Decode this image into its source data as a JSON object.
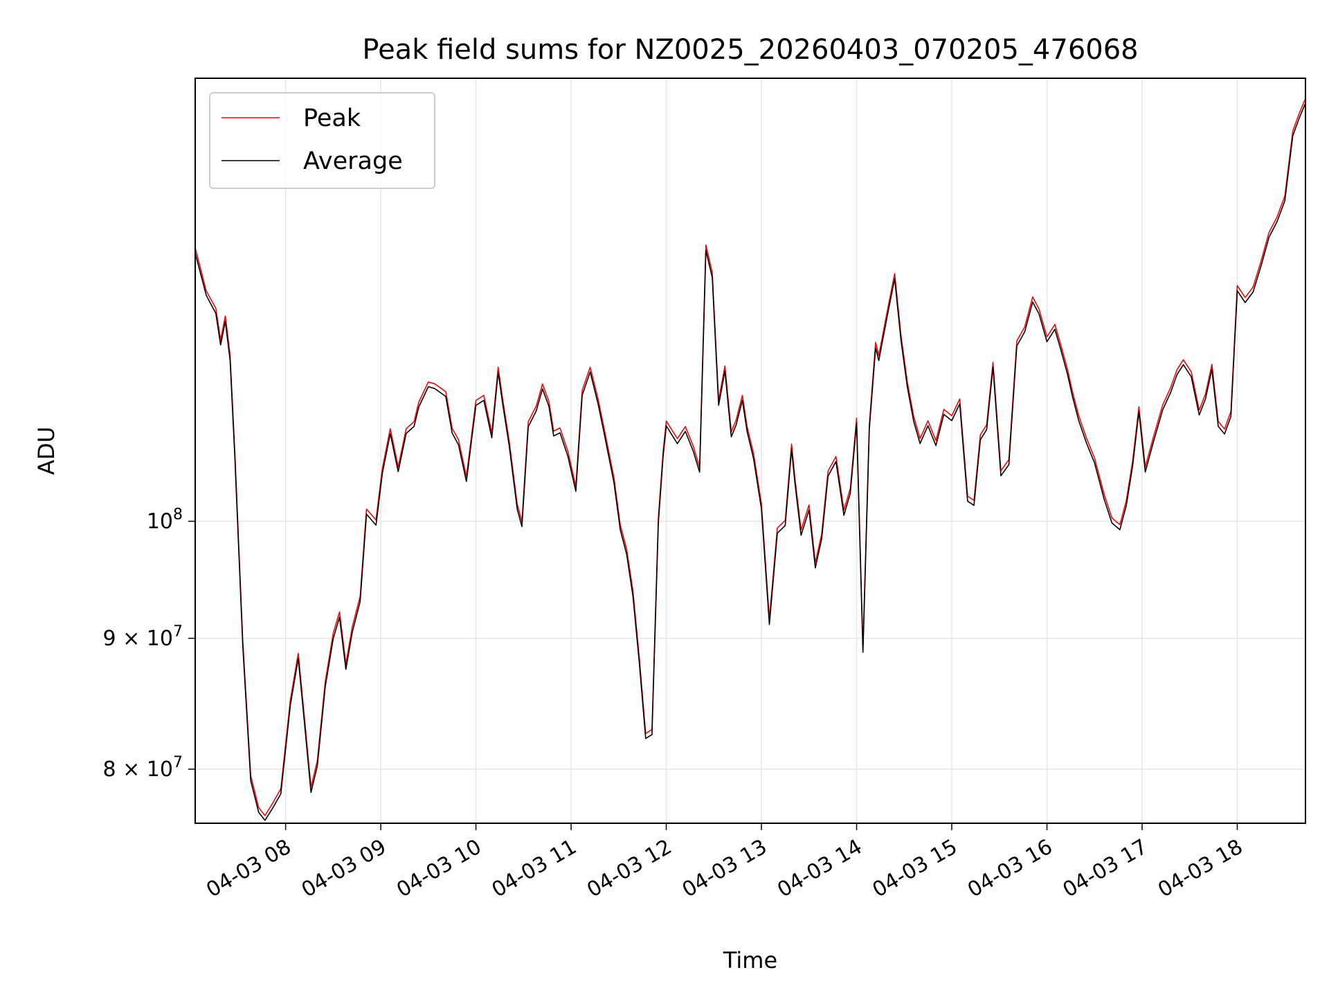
{
  "chart_data": {
    "type": "line",
    "title": "Peak field sums for NZ0025_20260403_070205_476068",
    "xlabel": "Time",
    "ylabel": "ADU",
    "y_scale": "log",
    "grid": true,
    "legend_position": "top-left",
    "x_range": [
      "04-03 07:03",
      "04-03 18:43"
    ],
    "ylim": [
      76200000,
      149000000
    ],
    "x_ticks": [
      "04-03 08",
      "04-03 09",
      "04-03 10",
      "04-03 11",
      "04-03 12",
      "04-03 13",
      "04-03 14",
      "04-03 15",
      "04-03 16",
      "04-03 17",
      "04-03 18"
    ],
    "y_ticks": [
      {
        "value": 80000000,
        "label_base": "8 × 10",
        "label_exp": "7"
      },
      {
        "value": 90000000,
        "label_base": "9 × 10",
        "label_exp": "7"
      },
      {
        "value": 100000000,
        "label_base": "10",
        "label_exp": "8"
      }
    ],
    "x": [
      "07:03",
      "07:10",
      "07:16",
      "07:19",
      "07:22",
      "07:25",
      "07:28",
      "07:33",
      "07:38",
      "07:43",
      "07:47",
      "07:52",
      "07:57",
      "08:03",
      "08:08",
      "08:12",
      "08:16",
      "08:20",
      "08:25",
      "08:30",
      "08:34",
      "08:38",
      "08:42",
      "08:47",
      "08:51",
      "08:57",
      "09:01",
      "09:06",
      "09:11",
      "09:16",
      "09:21",
      "09:24",
      "09:30",
      "09:34",
      "09:41",
      "09:45",
      "09:49",
      "09:54",
      "10:00",
      "10:05",
      "10:10",
      "10:14",
      "10:17",
      "10:21",
      "10:26",
      "10:29",
      "10:33",
      "10:38",
      "10:42",
      "10:46",
      "10:49",
      "10:53",
      "10:58",
      "11:03",
      "11:07",
      "11:12",
      "11:17",
      "11:21",
      "11:27",
      "11:31",
      "11:35",
      "11:39",
      "11:43",
      "11:47",
      "11:51",
      "11:55",
      "11:58",
      "12:00",
      "12:03",
      "12:07",
      "12:12",
      "12:17",
      "12:21",
      "12:25",
      "12:29",
      "12:33",
      "12:37",
      "12:41",
      "12:44",
      "12:48",
      "12:51",
      "12:55",
      "13:00",
      "13:05",
      "13:10",
      "13:15",
      "13:19",
      "13:21",
      "13:25",
      "13:30",
      "13:34",
      "13:38",
      "13:42",
      "13:47",
      "13:52",
      "13:56",
      "14:00",
      "14:04",
      "14:08",
      "14:12",
      "14:14",
      "14:19",
      "14:24",
      "14:28",
      "14:32",
      "14:36",
      "14:40",
      "14:45",
      "14:50",
      "14:55",
      "15:00",
      "15:05",
      "15:10",
      "15:14",
      "15:18",
      "15:22",
      "15:26",
      "15:31",
      "15:36",
      "15:41",
      "15:46",
      "15:51",
      "15:55",
      "16:00",
      "16:05",
      "16:09",
      "16:13",
      "16:16",
      "16:20",
      "16:25",
      "16:30",
      "16:36",
      "16:41",
      "16:46",
      "16:50",
      "16:54",
      "16:58",
      "17:02",
      "17:07",
      "17:13",
      "17:18",
      "17:22",
      "17:26",
      "17:31",
      "17:36",
      "17:40",
      "17:44",
      "17:48",
      "17:52",
      "17:56",
      "18:00",
      "18:05",
      "18:10",
      "18:15",
      "18:20",
      "18:25",
      "18:30",
      "18:35",
      "18:39",
      "18:43"
    ],
    "series": [
      {
        "name": "Peak",
        "color": "#ff0000",
        "values": [
          127930000,
          123040000,
          121130000,
          117730000,
          120290000,
          116160000,
          106400000,
          89850000,
          79540000,
          77280000,
          76730000,
          77620000,
          78600000,
          85160000,
          88800000,
          83650000,
          78710000,
          80600000,
          86570000,
          90410000,
          92170000,
          87940000,
          90920000,
          93470000,
          101100000,
          100120000,
          104880000,
          108690000,
          105020000,
          108690000,
          109390000,
          111340000,
          113360000,
          113170000,
          112370000,
          108740000,
          107600000,
          104100000,
          111490000,
          112000000,
          108270000,
          114880000,
          111490000,
          107470000,
          101560000,
          99980000,
          109370000,
          110930000,
          113150000,
          111390000,
          108460000,
          108770000,
          106480000,
          103200000,
          112500000,
          114880000,
          111650000,
          108570000,
          104030000,
          99690000,
          97530000,
          93920000,
          88460000,
          82600000,
          82910000,
          100290000,
          106480000,
          109450000,
          108700000,
          107720000,
          108900000,
          107000000,
          104990000,
          128240000,
          125100000,
          111490000,
          115000000,
          108380000,
          109530000,
          112000000,
          108860000,
          106300000,
          101600000,
          91580000,
          99390000,
          100080000,
          107200000,
          104080000,
          99220000,
          101480000,
          96340000,
          98880000,
          104630000,
          106000000,
          101000000,
          103000000,
          109730000,
          89290000,
          109130000,
          117470000,
          116090000,
          120550000,
          124980000,
          118200000,
          113310000,
          109900000,
          107730000,
          109470000,
          107530000,
          110600000,
          109970000,
          111640000,
          102280000,
          101900000,
          108080000,
          109070000,
          115380000,
          104650000,
          105700000,
          117630000,
          119120000,
          122380000,
          121070000,
          118060000,
          119390000,
          117070000,
          114630000,
          112430000,
          110000000,
          107740000,
          105880000,
          102500000,
          100300000,
          99700000,
          101860000,
          105520000,
          110860000,
          105000000,
          107800000,
          111050000,
          112780000,
          114620000,
          115650000,
          114400000,
          110520000,
          112150000,
          115170000,
          109410000,
          108650000,
          110400000,
          123630000,
          122310000,
          123480000,
          126380000,
          129690000,
          131480000,
          134010000,
          142090000,
          144320000,
          146330000
        ]
      },
      {
        "name": "Average",
        "color": "#000000",
        "values": [
          127300000,
          122550000,
          120580000,
          117200000,
          119720000,
          115600000,
          105900000,
          89420000,
          79170000,
          76950000,
          76400000,
          77270000,
          78240000,
          84760000,
          88380000,
          83250000,
          78340000,
          80220000,
          86160000,
          89970000,
          91730000,
          87520000,
          90480000,
          93030000,
          100640000,
          99650000,
          104410000,
          108200000,
          104570000,
          108220000,
          108910000,
          110840000,
          112880000,
          112690000,
          111890000,
          108270000,
          107120000,
          103640000,
          111000000,
          111500000,
          107800000,
          114380000,
          111000000,
          107000000,
          101100000,
          99520000,
          108880000,
          110440000,
          112650000,
          110900000,
          107980000,
          108290000,
          106000000,
          102730000,
          112010000,
          114380000,
          111160000,
          108100000,
          103570000,
          99230000,
          97080000,
          93480000,
          88030000,
          82240000,
          82520000,
          99830000,
          106000000,
          108970000,
          108220000,
          107240000,
          108420000,
          106520000,
          104520000,
          127610000,
          124530000,
          111000000,
          114490000,
          107900000,
          109040000,
          111500000,
          108380000,
          105820000,
          101140000,
          91120000,
          98930000,
          99620000,
          106720000,
          103620000,
          98750000,
          101020000,
          95890000,
          98430000,
          104150000,
          105520000,
          100540000,
          102540000,
          109240000,
          88870000,
          108640000,
          116900000,
          115560000,
          120010000,
          124400000,
          117650000,
          112800000,
          109410000,
          107250000,
          108980000,
          107050000,
          110100000,
          109480000,
          111140000,
          101830000,
          101440000,
          107600000,
          108590000,
          114870000,
          104180000,
          105230000,
          117100000,
          118590000,
          121820000,
          120530000,
          117540000,
          118860000,
          116550000,
          114120000,
          111930000,
          109510000,
          107260000,
          105410000,
          102040000,
          99840000,
          99240000,
          101400000,
          105050000,
          110360000,
          104530000,
          107320000,
          110560000,
          112280000,
          114110000,
          115140000,
          113890000,
          110030000,
          111650000,
          114660000,
          108920000,
          108170000,
          109900000,
          123060000,
          121760000,
          122930000,
          125820000,
          129120000,
          130920000,
          133440000,
          141470000,
          143700000,
          145700000
        ]
      }
    ]
  }
}
